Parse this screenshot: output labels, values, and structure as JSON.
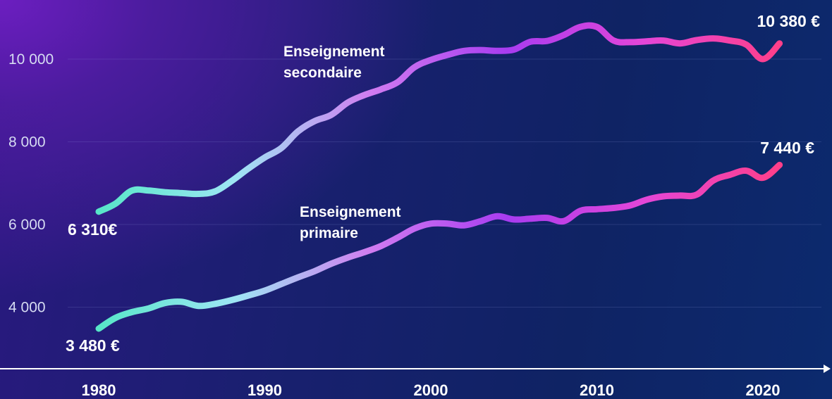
{
  "chart_data": {
    "type": "line",
    "title": "",
    "xlabel": "",
    "ylabel": "",
    "xlim": [
      1980,
      2021
    ],
    "ylim": [
      3000,
      11000
    ],
    "yticks": [
      {
        "value": 4000,
        "label": "4 000"
      },
      {
        "value": 6000,
        "label": "6 000"
      },
      {
        "value": 8000,
        "label": "8 000"
      },
      {
        "value": 10000,
        "label": "10 000"
      }
    ],
    "xticks": [
      {
        "value": 1980,
        "label": "1980"
      },
      {
        "value": 1990,
        "label": "1990"
      },
      {
        "value": 2000,
        "label": "2000"
      },
      {
        "value": 2010,
        "label": "2010"
      },
      {
        "value": 2020,
        "label": "2020"
      }
    ],
    "grid": true,
    "legend": "none",
    "gradient_colors": [
      "#57e6c8",
      "#9ee6f4",
      "#d07cf0",
      "#a83cf0",
      "#e346d8",
      "#ff3f8a"
    ],
    "series": [
      {
        "name_lines": [
          "Enseignement",
          "secondaire"
        ],
        "start_label": "6 310€",
        "end_label": "10 380 €",
        "x": [
          1980,
          1981,
          1982,
          1983,
          1984,
          1985,
          1986,
          1987,
          1988,
          1989,
          1990,
          1991,
          1992,
          1993,
          1994,
          1995,
          1996,
          1997,
          1998,
          1999,
          2000,
          2001,
          2002,
          2003,
          2004,
          2005,
          2006,
          2007,
          2008,
          2009,
          2010,
          2011,
          2012,
          2013,
          2014,
          2015,
          2016,
          2017,
          2018,
          2019,
          2020,
          2021
        ],
        "values": [
          6310,
          6500,
          6820,
          6820,
          6780,
          6760,
          6740,
          6800,
          7050,
          7350,
          7620,
          7850,
          8250,
          8500,
          8650,
          8950,
          9130,
          9270,
          9440,
          9800,
          9980,
          10100,
          10200,
          10220,
          10200,
          10230,
          10420,
          10440,
          10580,
          10780,
          10780,
          10450,
          10410,
          10430,
          10450,
          10380,
          10460,
          10500,
          10450,
          10350,
          10000,
          10380
        ]
      },
      {
        "name_lines": [
          "Enseignement",
          "primaire"
        ],
        "start_label": "3 480 €",
        "end_label": "7 440 €",
        "x": [
          1980,
          1981,
          1982,
          1983,
          1984,
          1985,
          1986,
          1987,
          1988,
          1989,
          1990,
          1991,
          1992,
          1993,
          1994,
          1995,
          1996,
          1997,
          1998,
          1999,
          2000,
          2001,
          2002,
          2003,
          2004,
          2005,
          2006,
          2007,
          2008,
          2009,
          2010,
          2011,
          2012,
          2013,
          2014,
          2015,
          2016,
          2017,
          2018,
          2019,
          2020,
          2021
        ],
        "values": [
          3480,
          3740,
          3880,
          3970,
          4100,
          4130,
          4030,
          4080,
          4170,
          4280,
          4400,
          4560,
          4720,
          4870,
          5050,
          5200,
          5330,
          5480,
          5680,
          5900,
          6020,
          6020,
          5980,
          6080,
          6200,
          6120,
          6140,
          6160,
          6080,
          6330,
          6370,
          6400,
          6460,
          6600,
          6680,
          6700,
          6720,
          7060,
          7200,
          7300,
          7130,
          7440
        ]
      }
    ]
  }
}
